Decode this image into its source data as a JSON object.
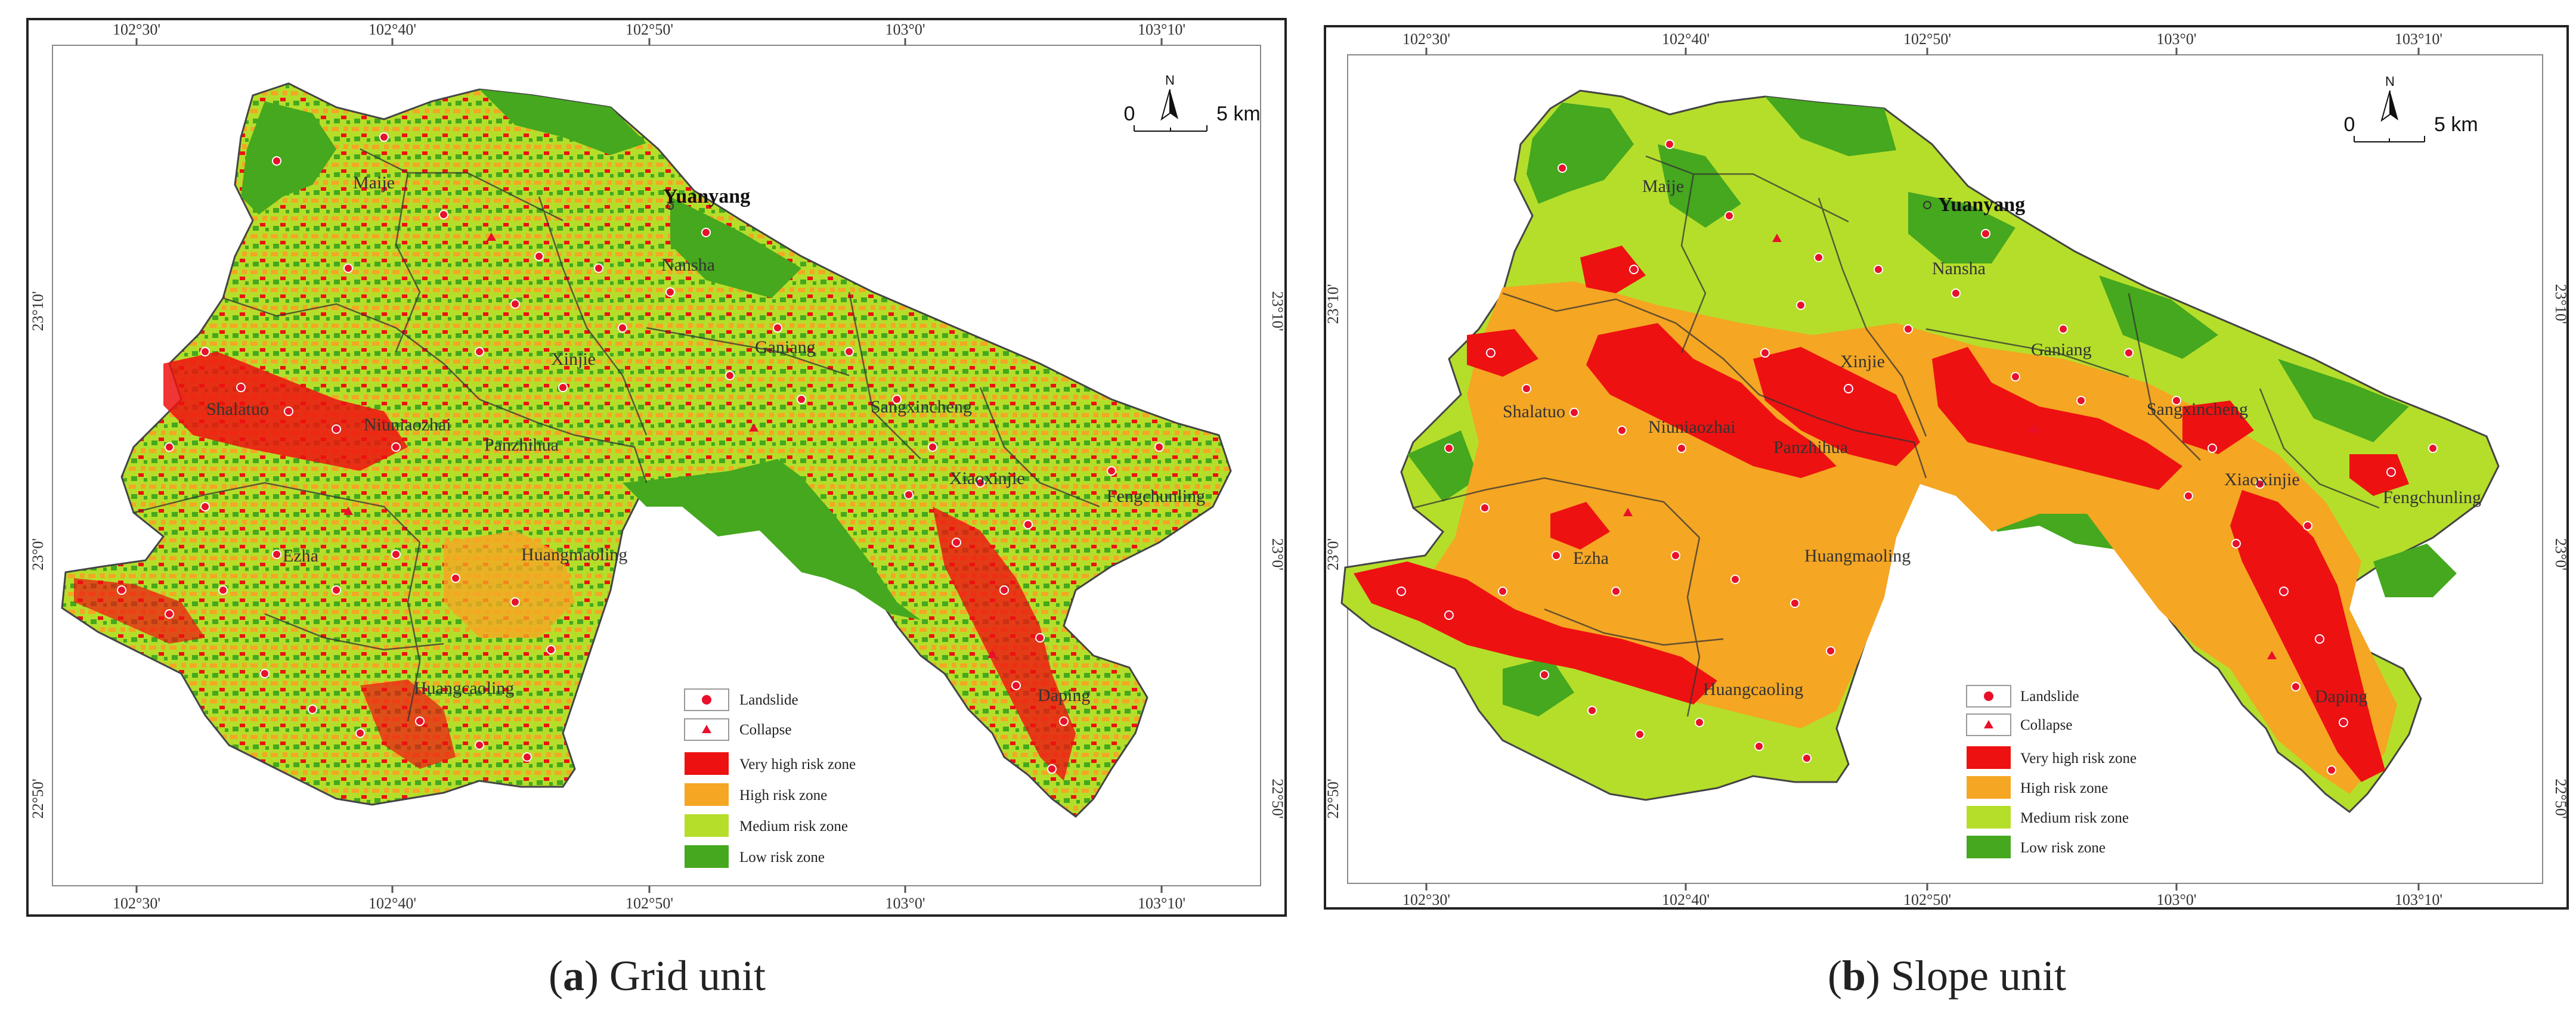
{
  "legend_colors": {
    "very_high": "#ee1111",
    "high": "#f5a623",
    "medium": "#b5de2b",
    "low": "#45a81e",
    "marker": "#e8102b"
  },
  "panels": [
    {
      "id": "a",
      "caption_letter": "a",
      "caption_text": " Grid unit",
      "north_label": "N",
      "scale_start": "0",
      "scale_end": "5 km",
      "lon_ticks": [
        "102°30'",
        "102°40'",
        "102°50'",
        "103°0'",
        "103°10'"
      ],
      "lat_ticks": [
        "23°10'",
        "23°0'",
        "22°50'"
      ],
      "places": [
        {
          "name": "Yuanyang",
          "bold": true
        },
        {
          "name": "Maije"
        },
        {
          "name": "Nansha"
        },
        {
          "name": "Xinjie"
        },
        {
          "name": "Ganiang"
        },
        {
          "name": "Shalatuo"
        },
        {
          "name": "Niuniaozhai"
        },
        {
          "name": "Panzhihua"
        },
        {
          "name": "Sangxincheng"
        },
        {
          "name": "Xiaoxinjie"
        },
        {
          "name": "Fengchunling"
        },
        {
          "name": "Ezha"
        },
        {
          "name": "Huangmaoling"
        },
        {
          "name": "Huangcaoling"
        },
        {
          "name": "Daping"
        }
      ],
      "legend": [
        {
          "label": "Landslide",
          "symbol": "circle"
        },
        {
          "label": "Collapse",
          "symbol": "triangle"
        },
        {
          "label": "Very high risk zone",
          "color_key": "very_high"
        },
        {
          "label": "High risk zone",
          "color_key": "high"
        },
        {
          "label": "Medium risk zone",
          "color_key": "medium"
        },
        {
          "label": "Low risk zone",
          "color_key": "low"
        }
      ]
    },
    {
      "id": "b",
      "caption_letter": "b",
      "caption_text": " Slope unit",
      "north_label": "N",
      "scale_start": "0",
      "scale_end": "5 km",
      "lon_ticks": [
        "102°30'",
        "102°40'",
        "102°50'",
        "103°0'",
        "103°10'"
      ],
      "lat_ticks": [
        "23°10'",
        "23°0'",
        "22°50'"
      ],
      "places": [
        {
          "name": "Yuanyang",
          "bold": true
        },
        {
          "name": "Maije"
        },
        {
          "name": "Nansha"
        },
        {
          "name": "Xinjie"
        },
        {
          "name": "Ganiang"
        },
        {
          "name": "Shalatuo"
        },
        {
          "name": "Niuniaozhai"
        },
        {
          "name": "Panzhihua"
        },
        {
          "name": "Sangxincheng"
        },
        {
          "name": "Xiaoxinjie"
        },
        {
          "name": "Fengchunling"
        },
        {
          "name": "Ezha"
        },
        {
          "name": "Huangmaoling"
        },
        {
          "name": "Huangcaoling"
        },
        {
          "name": "Daping"
        }
      ],
      "legend": [
        {
          "label": "Landslide",
          "symbol": "circle"
        },
        {
          "label": "Collapse",
          "symbol": "triangle"
        },
        {
          "label": "Very high risk zone",
          "color_key": "very_high"
        },
        {
          "label": "High risk zone",
          "color_key": "high"
        },
        {
          "label": "Medium risk zone",
          "color_key": "medium"
        },
        {
          "label": "Low risk zone",
          "color_key": "low"
        }
      ]
    }
  ]
}
